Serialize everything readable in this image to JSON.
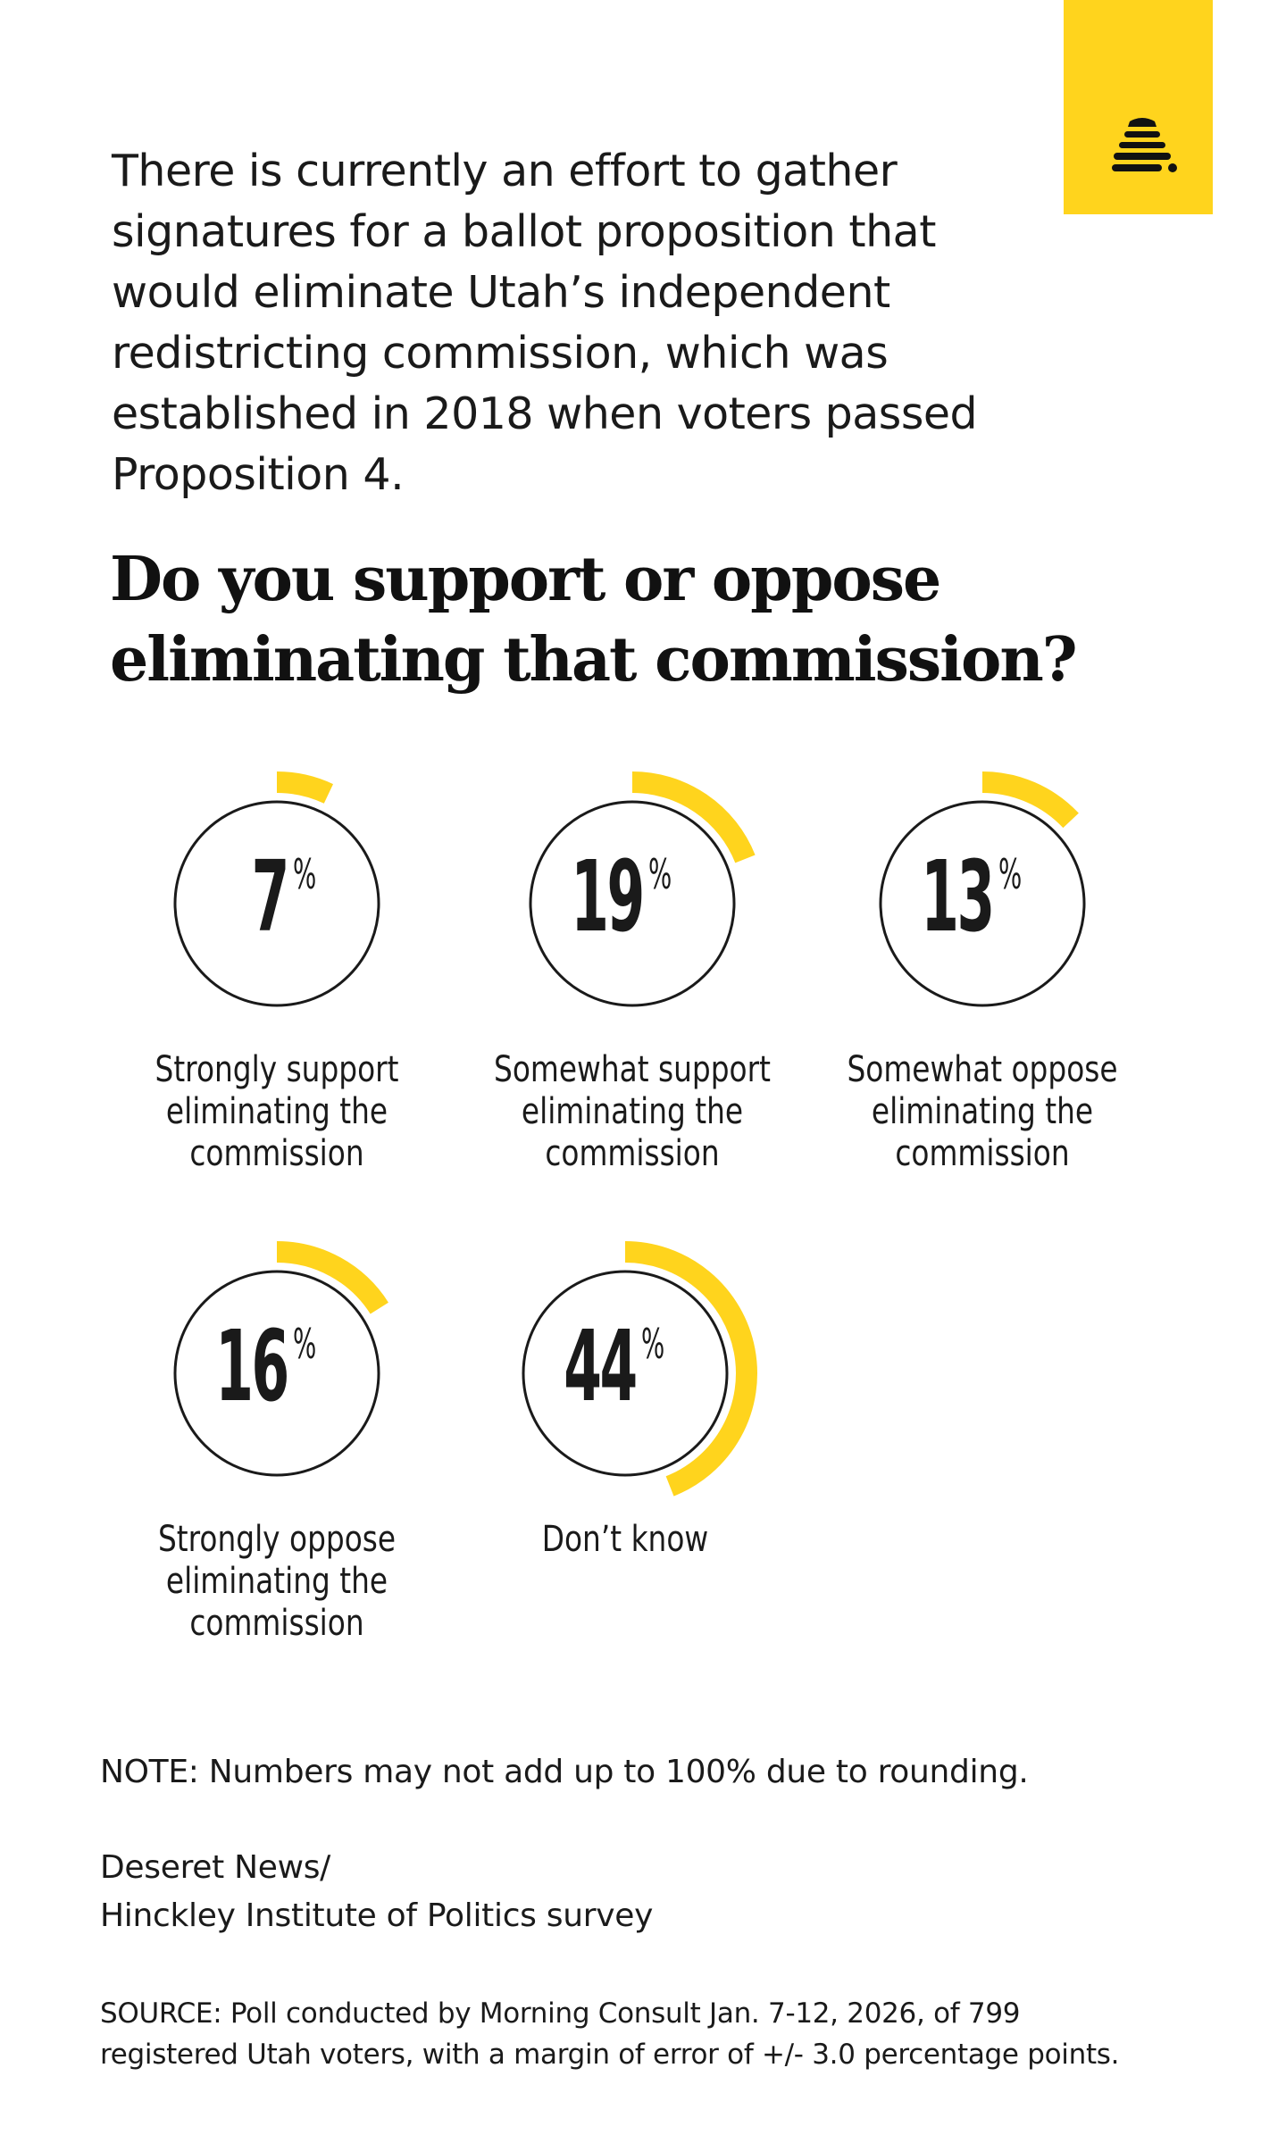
{
  "intro_text": "There is currently an effort to gather signatures for a ballot proposition that would eliminate Utah’s independent redistricting commission, which was established in 2018 when voters passed Proposition 4.",
  "question": "Do you support or oppose eliminating that commission?",
  "accent_color": "#ffd41d",
  "ring_color": "#1a1a1a",
  "logo_icon": "beehive-icon",
  "chart_data": {
    "type": "pie",
    "title": "Do you support or oppose eliminating that commission?",
    "unit": "%",
    "categories": [
      "Strongly support eliminating the commission",
      "Somewhat support eliminating the commission",
      "Somewhat oppose eliminating the commission",
      "Strongly oppose eliminating the commission",
      "Don't know"
    ],
    "values": [
      7,
      19,
      13,
      16,
      44
    ],
    "label_lines": [
      [
        "Strongly support",
        "eliminating the",
        "commission"
      ],
      [
        "Somewhat support",
        "eliminating the",
        "commission"
      ],
      [
        "Somewhat oppose",
        "eliminating the",
        "commission"
      ],
      [
        "Strongly oppose",
        "eliminating the",
        "commission"
      ],
      [
        "Don’t know"
      ]
    ],
    "value_labels": [
      "7",
      "19",
      "13",
      "16",
      "44"
    ],
    "percent_symbol": "%"
  },
  "note": "NOTE: Numbers may not add up to 100% due to rounding.",
  "attribution": [
    "Deseret News/",
    "Hinckley Institute of Politics survey"
  ],
  "source": [
    "SOURCE: Poll conducted by Morning Consult Jan. 7-12, 2026, of 799",
    "registered Utah voters, with a margin of error of +/- 3.0 percentage points."
  ]
}
